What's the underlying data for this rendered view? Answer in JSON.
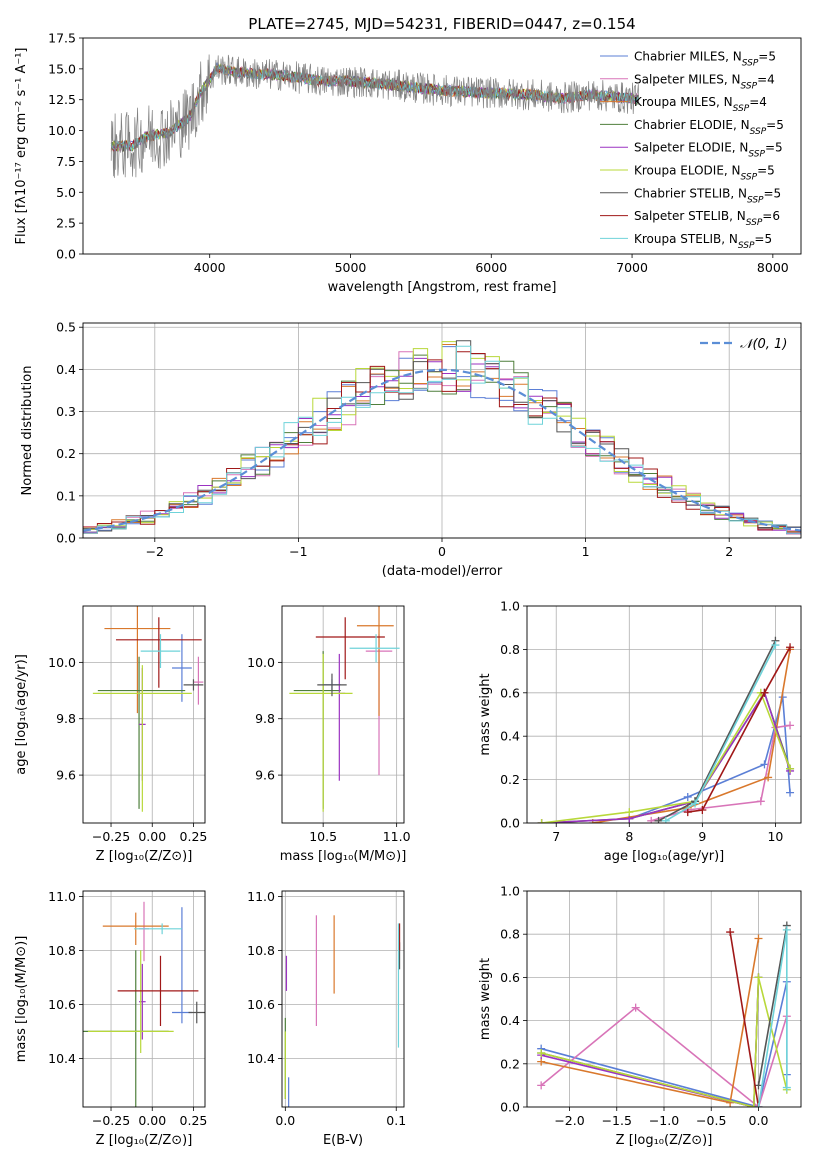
{
  "title": "PLATE=2745, MJD=54231, FIBERID=0447, z=0.154",
  "colors": {
    "Chabrier MILES": "#5b7fd6",
    "Salpeter MILES": "#d874b8",
    "Kroupa MILES": "#d9782c",
    "Chabrier ELODIE": "#4f7f3c",
    "Salpeter ELODIE": "#9b33c2",
    "Kroupa ELODIE": "#b8d83a",
    "Chabrier STELIB": "#555555",
    "Salpeter STELIB": "#a01818",
    "Kroupa STELIB": "#6fd3d9",
    "data": "#808080",
    "normal": "#5b8ed6"
  },
  "chart_data": [
    {
      "id": "spectrum",
      "type": "line",
      "title": "PLATE=2745, MJD=54231, FIBERID=0447, z=0.154",
      "xlabel": "wavelength [Angstrom, rest frame]",
      "ylabel": "Flux [fλ10⁻¹⁷ erg cm⁻² s⁻¹ A⁻¹]",
      "xlim": [
        3100,
        8200
      ],
      "ylim": [
        0,
        17.5
      ],
      "xticks": [
        "4000",
        "5000",
        "6000",
        "7000",
        "8000"
      ],
      "yticks": [
        "0.0",
        "2.5",
        "5.0",
        "7.5",
        "10.0",
        "12.5",
        "15.0",
        "17.5"
      ],
      "grid": false,
      "legend_position": "right",
      "legend": [
        {
          "name": "Chabrier MILES",
          "nssp": "5"
        },
        {
          "name": "Salpeter MILES",
          "nssp": "4"
        },
        {
          "name": "Kroupa MILES",
          "nssp": "4"
        },
        {
          "name": "Chabrier ELODIE",
          "nssp": "5"
        },
        {
          "name": "Salpeter ELODIE",
          "nssp": "5"
        },
        {
          "name": "Kroupa ELODIE",
          "nssp": "5"
        },
        {
          "name": "Chabrier STELIB",
          "nssp": "5"
        },
        {
          "name": "Salpeter STELIB",
          "nssp": "6"
        },
        {
          "name": "Kroupa STELIB",
          "nssp": "5"
        }
      ],
      "continuum": {
        "x": [
          3300,
          3450,
          3550,
          3700,
          3850,
          3950,
          4050,
          4300,
          4500,
          4800,
          5000,
          5300,
          5600,
          5900,
          6100,
          6300,
          6500,
          6700,
          6900,
          7100,
          7300,
          7500,
          7700,
          7900
        ],
        "y": [
          8.7,
          8.8,
          9.5,
          9.8,
          11.0,
          13.3,
          15.0,
          14.6,
          14.5,
          14.0,
          14.0,
          13.7,
          13.3,
          13.1,
          13.0,
          12.9,
          12.6,
          12.9,
          12.7,
          12.5,
          12.3,
          12.2,
          12.0,
          11.8
        ]
      },
      "data_range": [
        3300,
        7050
      ]
    },
    {
      "id": "residuals",
      "type": "histogram",
      "xlabel": "(data-model)/error",
      "ylabel": "Normed distribution",
      "xlim": [
        -2.5,
        2.5
      ],
      "ylim": [
        0,
        0.51
      ],
      "xticks": [
        "−2",
        "−1",
        "0",
        "1",
        "2"
      ],
      "yticks": [
        "0.0",
        "0.1",
        "0.2",
        "0.3",
        "0.4",
        "0.5"
      ],
      "grid": true,
      "legend_position": "top-right",
      "legend_label": "𝒩(0, 1)",
      "bin_width": 0.1,
      "normal_mu": 0,
      "normal_sigma": 1
    },
    {
      "id": "age-vs-z",
      "type": "errorbar",
      "xlabel": "Z [log₁₀(Z/Z⊙)]",
      "ylabel": "age  [log₁₀(age/yr)]",
      "xlim": [
        -0.42,
        0.32
      ],
      "ylim": [
        9.43,
        10.2
      ],
      "xticks": [
        "−0.25",
        "0.00",
        "0.25"
      ],
      "xtick_values": [
        -0.25,
        0,
        0.25
      ],
      "yticks": [
        "9.6",
        "9.8",
        "10.0"
      ],
      "ytick_values": [
        9.6,
        9.8,
        10.0
      ],
      "grid": true,
      "points": [
        {
          "model": "Chabrier MILES",
          "x": 0.18,
          "xerr": [
            0.06,
            0.06
          ],
          "y": 9.98,
          "yerr": [
            0.12,
            0.12
          ]
        },
        {
          "model": "Salpeter MILES",
          "x": 0.28,
          "xerr": [
            0.03,
            0.03
          ],
          "y": 9.93,
          "yerr": [
            0.08,
            0.09
          ]
        },
        {
          "model": "Kroupa MILES",
          "x": -0.09,
          "xerr": [
            0.2,
            0.2
          ],
          "y": 10.12,
          "yerr": [
            0.3,
            0.3
          ]
        },
        {
          "model": "Chabrier ELODIE",
          "x": -0.08,
          "xerr": [
            0.25,
            0.28
          ],
          "y": 9.9,
          "yerr": [
            0.42,
            0.12
          ]
        },
        {
          "model": "Salpeter ELODIE",
          "x": -0.06,
          "xerr": [
            0.02,
            0.02
          ],
          "y": 9.78,
          "yerr": [
            0.2,
            0.2
          ]
        },
        {
          "model": "Kroupa ELODIE",
          "x": -0.06,
          "xerr": [
            0.3,
            0.3
          ],
          "y": 9.89,
          "yerr": [
            0.42,
            0.1
          ]
        },
        {
          "model": "Chabrier STELIB",
          "x": 0.25,
          "xerr": [
            0.06,
            0.06
          ],
          "y": 9.92,
          "yerr": [
            0.02,
            0.02
          ]
        },
        {
          "model": "Salpeter STELIB",
          "x": 0.04,
          "xerr": [
            0.26,
            0.26
          ],
          "y": 10.08,
          "yerr": [
            0.17,
            0.08
          ]
        },
        {
          "model": "Kroupa STELIB",
          "x": 0.05,
          "xerr": [
            0.12,
            0.12
          ],
          "y": 10.04,
          "yerr": [
            0.06,
            0.06
          ]
        }
      ]
    },
    {
      "id": "age-vs-mass",
      "type": "errorbar",
      "xlabel": "mass [log₁₀(M/M⊙)]",
      "ylabel": "",
      "xlim": [
        10.22,
        11.05
      ],
      "ylim": [
        9.43,
        10.2
      ],
      "xticks": [
        "10.5",
        "11.0"
      ],
      "xtick_values": [
        10.5,
        11.0
      ],
      "yticks": [
        "9.6",
        "9.8",
        "10.0"
      ],
      "ytick_values": [
        9.6,
        9.8,
        10.0
      ],
      "grid": true,
      "points": [
        {
          "model": "Chabrier MILES",
          "x": 10.56,
          "xerr": [
            0.06,
            0.06
          ],
          "y": 9.92,
          "yerr": [
            0.02,
            0.02
          ]
        },
        {
          "model": "Salpeter MILES",
          "x": 10.88,
          "xerr": [
            0.09,
            0.09
          ],
          "y": 10.04,
          "yerr": [
            0.44,
            0.06
          ]
        },
        {
          "model": "Kroupa MILES",
          "x": 10.88,
          "xerr": [
            0.15,
            0.1
          ],
          "y": 10.13,
          "yerr": [
            0.32,
            0.1
          ]
        },
        {
          "model": "Chabrier ELODIE",
          "x": 10.5,
          "xerr": [
            0.2,
            0.12
          ],
          "y": 9.9,
          "yerr": [
            0.42,
            0.14
          ]
        },
        {
          "model": "Salpeter ELODIE",
          "x": 10.61,
          "xerr": [
            0.04,
            0.04
          ],
          "y": 9.89,
          "yerr": [
            0.31,
            0.14
          ]
        },
        {
          "model": "Kroupa ELODIE",
          "x": 10.5,
          "xerr": [
            0.23,
            0.2
          ],
          "y": 9.89,
          "yerr": [
            0.42,
            0.14
          ]
        },
        {
          "model": "Chabrier STELIB",
          "x": 10.56,
          "xerr": [
            0.1,
            0.1
          ],
          "y": 9.92,
          "yerr": [
            0.04,
            0.04
          ]
        },
        {
          "model": "Salpeter STELIB",
          "x": 10.65,
          "xerr": [
            0.2,
            0.27
          ],
          "y": 10.09,
          "yerr": [
            0.15,
            0.07
          ]
        },
        {
          "model": "Kroupa STELIB",
          "x": 10.86,
          "xerr": [
            0.18,
            0.16
          ],
          "y": 10.05,
          "yerr": [
            0.05,
            0.05
          ]
        }
      ]
    },
    {
      "id": "mass-weight-vs-age",
      "type": "line",
      "xlabel": "age  [log₁₀(age/yr)]",
      "ylabel": "mass weight",
      "xlim": [
        6.6,
        10.35
      ],
      "ylim": [
        0,
        1.0
      ],
      "xticks": [
        "7",
        "8",
        "9",
        "10"
      ],
      "xtick_values": [
        7,
        8,
        9,
        10
      ],
      "yticks": [
        "0.0",
        "0.2",
        "0.4",
        "0.6",
        "0.8",
        "1.0"
      ],
      "ytick_values": [
        0,
        0.2,
        0.4,
        0.6,
        0.8,
        1.0
      ],
      "grid": true,
      "series": [
        {
          "model": "Chabrier MILES",
          "x": [
            8.0,
            8.8,
            9.85,
            10.1,
            10.2
          ],
          "y": [
            0.02,
            0.12,
            0.27,
            0.58,
            0.14
          ]
        },
        {
          "model": "Salpeter MILES",
          "x": [
            8.3,
            8.8,
            9.8,
            10.0,
            10.2
          ],
          "y": [
            0.01,
            0.06,
            0.1,
            0.44,
            0.45
          ]
        },
        {
          "model": "Kroupa MILES",
          "x": [
            7.5,
            8.8,
            9.9,
            10.2
          ],
          "y": [
            0.0,
            0.07,
            0.21,
            0.8
          ]
        },
        {
          "model": "Chabrier ELODIE",
          "x": [
            6.8,
            8.0,
            8.9,
            9.85,
            10.2
          ],
          "y": [
            0.0,
            0.02,
            0.1,
            0.6,
            0.25
          ]
        },
        {
          "model": "Salpeter ELODIE",
          "x": [
            6.8,
            8.0,
            8.9,
            9.85,
            10.2
          ],
          "y": [
            0.0,
            0.02,
            0.1,
            0.6,
            0.24
          ]
        },
        {
          "model": "Kroupa ELODIE",
          "x": [
            6.8,
            8.0,
            8.9,
            9.8,
            10.2
          ],
          "y": [
            0.0,
            0.05,
            0.1,
            0.6,
            0.25
          ]
        },
        {
          "model": "Chabrier STELIB",
          "x": [
            8.4,
            8.9,
            10.0
          ],
          "y": [
            0.01,
            0.1,
            0.84
          ]
        },
        {
          "model": "Salpeter STELIB",
          "x": [
            8.8,
            9.0,
            9.85,
            10.2
          ],
          "y": [
            0.05,
            0.06,
            0.6,
            0.81
          ]
        },
        {
          "model": "Kroupa STELIB",
          "x": [
            8.5,
            8.9,
            10.0
          ],
          "y": [
            0.01,
            0.09,
            0.82
          ]
        }
      ]
    },
    {
      "id": "mass-vs-z",
      "type": "errorbar",
      "xlabel": "Z [log₁₀(Z/Z⊙)]",
      "ylabel": "mass [log₁₀(M/M⊙)]",
      "xlim": [
        -0.42,
        0.32
      ],
      "ylim": [
        10.22,
        11.02
      ],
      "xticks": [
        "−0.25",
        "0.00",
        "0.25"
      ],
      "xtick_values": [
        -0.25,
        0,
        0.25
      ],
      "yticks": [
        "10.4",
        "10.6",
        "10.8",
        "11.0"
      ],
      "ytick_values": [
        10.4,
        10.6,
        10.8,
        11.0
      ],
      "grid": true,
      "points": [
        {
          "model": "Chabrier MILES",
          "x": 0.18,
          "xerr": [
            0.06,
            0.06
          ],
          "y": 10.57,
          "yerr": [
            0.04,
            0.39
          ]
        },
        {
          "model": "Salpeter MILES",
          "x": -0.05,
          "xerr": [
            0.03,
            0.03
          ],
          "y": 10.88,
          "yerr": [
            0.12,
            0.1
          ]
        },
        {
          "model": "Kroupa MILES",
          "x": -0.1,
          "xerr": [
            0.2,
            0.2
          ],
          "y": 10.89,
          "yerr": [
            0.07,
            0.05
          ]
        },
        {
          "model": "Chabrier ELODIE",
          "x": -0.1,
          "xerr": [
            0.32,
            0.2
          ],
          "y": 10.5,
          "yerr": [
            0.28,
            0.3
          ]
        },
        {
          "model": "Salpeter ELODIE",
          "x": -0.06,
          "xerr": [
            0.02,
            0.02
          ],
          "y": 10.61,
          "yerr": [
            0.14,
            0.14
          ]
        },
        {
          "model": "Kroupa ELODIE",
          "x": -0.07,
          "xerr": [
            0.32,
            0.2
          ],
          "y": 10.5,
          "yerr": [
            0.08,
            0.3
          ]
        },
        {
          "model": "Chabrier STELIB",
          "x": 0.27,
          "xerr": [
            0.05,
            0.05
          ],
          "y": 10.57,
          "yerr": [
            0.04,
            0.04
          ]
        },
        {
          "model": "Salpeter STELIB",
          "x": 0.05,
          "xerr": [
            0.26,
            0.23
          ],
          "y": 10.65,
          "yerr": [
            0.13,
            0.13
          ]
        },
        {
          "model": "Kroupa STELIB",
          "x": 0.06,
          "xerr": [
            0.17,
            0.12
          ],
          "y": 10.88,
          "yerr": [
            0.02,
            0.02
          ]
        }
      ]
    },
    {
      "id": "mass-vs-ebv",
      "type": "errorbar",
      "xlabel": "E(B-V)",
      "ylabel": "",
      "xlim": [
        -0.003,
        0.107
      ],
      "ylim": [
        10.22,
        11.02
      ],
      "xticks": [
        "0.0",
        "0.1"
      ],
      "xtick_values": [
        0.0,
        0.1
      ],
      "yticks": [
        "10.4",
        "10.6",
        "10.8",
        "11.0"
      ],
      "ytick_values": [
        10.4,
        10.6,
        10.8,
        11.0
      ],
      "grid": true,
      "points": [
        {
          "model": "Chabrier MILES",
          "x": 0.003,
          "y": 10.3,
          "yerr": [
            0.08,
            0.03
          ]
        },
        {
          "model": "Salpeter MILES",
          "x": 0.028,
          "y": 10.88,
          "yerr": [
            0.36,
            0.05
          ]
        },
        {
          "model": "Kroupa MILES",
          "x": 0.044,
          "y": 10.8,
          "yerr": [
            0.16,
            0.13
          ]
        },
        {
          "model": "Chabrier ELODIE",
          "x": 0.0,
          "y": 10.45,
          "yerr": [
            0.2,
            0.1
          ]
        },
        {
          "model": "Salpeter ELODIE",
          "x": 0.001,
          "y": 10.72,
          "yerr": [
            0.07,
            0.06
          ]
        },
        {
          "model": "Kroupa ELODIE",
          "x": 0.0,
          "y": 10.45,
          "yerr": [
            0.2,
            0.05
          ]
        },
        {
          "model": "Chabrier STELIB",
          "x": 0.103,
          "y": 10.78,
          "yerr": [
            0.05,
            0.05
          ]
        },
        {
          "model": "Salpeter STELIB",
          "x": 0.103,
          "y": 10.85,
          "yerr": [
            0.05,
            0.05
          ]
        },
        {
          "model": "Kroupa STELIB",
          "x": 0.102,
          "y": 10.6,
          "yerr": [
            0.16,
            0.3
          ]
        }
      ]
    },
    {
      "id": "mass-weight-vs-z",
      "type": "line",
      "xlabel": "Z [log₁₀(Z/Z⊙)]",
      "ylabel": "mass weight",
      "xlim": [
        -2.45,
        0.45
      ],
      "ylim": [
        0,
        1.0
      ],
      "xticks": [
        "−2.0",
        "−1.5",
        "−1.0",
        "−0.5",
        "0.0"
      ],
      "xtick_values": [
        -2.0,
        -1.5,
        -1.0,
        -0.5,
        0.0
      ],
      "yticks": [
        "0.0",
        "0.2",
        "0.4",
        "0.6",
        "0.8",
        "1.0"
      ],
      "ytick_values": [
        0,
        0.2,
        0.4,
        0.6,
        0.8,
        1.0
      ],
      "grid": true,
      "series": [
        {
          "model": "Chabrier MILES",
          "x": [
            -2.3,
            0.0,
            0.3,
            0.3
          ],
          "y": [
            0.27,
            0.0,
            0.58,
            0.15
          ]
        },
        {
          "model": "Salpeter MILES",
          "x": [
            -2.3,
            -1.3,
            0.0,
            0.3
          ],
          "y": [
            0.1,
            0.46,
            0.0,
            0.42
          ]
        },
        {
          "model": "Kroupa MILES",
          "x": [
            -2.3,
            -0.3,
            0.0
          ],
          "y": [
            0.21,
            0.02,
            0.78
          ]
        },
        {
          "model": "Chabrier ELODIE",
          "x": [
            -2.3,
            -0.05,
            0.0
          ],
          "y": [
            0.25,
            0.0,
            0.6
          ]
        },
        {
          "model": "Salpeter ELODIE",
          "x": [
            -2.3,
            -0.05,
            0.0
          ],
          "y": [
            0.24,
            0.0,
            0.6
          ]
        },
        {
          "model": "Kroupa ELODIE",
          "x": [
            -2.3,
            -0.05,
            0.0,
            0.3
          ],
          "y": [
            0.25,
            0.0,
            0.6,
            0.08
          ]
        },
        {
          "model": "Chabrier STELIB",
          "x": [
            0.0,
            0.3
          ],
          "y": [
            0.1,
            0.84
          ]
        },
        {
          "model": "Salpeter STELIB",
          "x": [
            -0.3,
            0.0
          ],
          "y": [
            0.81,
            0.0
          ]
        },
        {
          "model": "Kroupa STELIB",
          "x": [
            0.0,
            0.3,
            0.3
          ],
          "y": [
            0.0,
            0.82,
            0.09
          ]
        }
      ]
    }
  ]
}
